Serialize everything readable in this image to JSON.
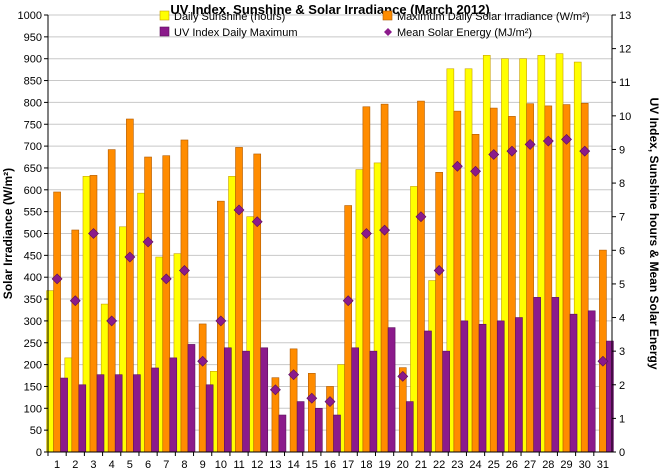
{
  "chart_data": {
    "type": "bar",
    "title": "UV Index, Sunshine & Solar Irradiance (March 2012)",
    "ylabel": "Solar Irradiance (W/m²)",
    "y2label": "UV Index, Sunshine hours & Mean Solar Energy",
    "xlabel": "",
    "ylim": [
      0,
      1000
    ],
    "y2lim": [
      0,
      13
    ],
    "yticks": [
      0,
      50,
      100,
      150,
      200,
      250,
      300,
      350,
      400,
      450,
      500,
      550,
      600,
      650,
      700,
      750,
      800,
      850,
      900,
      950,
      1000
    ],
    "y2ticks": [
      0,
      1,
      2,
      3,
      4,
      5,
      6,
      7,
      8,
      9,
      10,
      11,
      12,
      13
    ],
    "grid": true,
    "legend_position": "top",
    "categories": [
      "1",
      "2",
      "3",
      "4",
      "5",
      "6",
      "7",
      "8",
      "9",
      "10",
      "11",
      "12",
      "13",
      "14",
      "15",
      "16",
      "17",
      "18",
      "19",
      "20",
      "21",
      "22",
      "23",
      "24",
      "25",
      "26",
      "27",
      "28",
      "29",
      "30",
      "31"
    ],
    "series": [
      {
        "name": "Daily Sunshine (hours)",
        "kind": "bar",
        "axis": "right",
        "color": "#FFFF00",
        "stroke": "#C8A000",
        "values": [
          4.8,
          2.8,
          8.2,
          4.4,
          6.7,
          7.7,
          5.8,
          5.9,
          0,
          2.4,
          8.2,
          7.0,
          0,
          0,
          0,
          0,
          2.6,
          8.4,
          8.6,
          0,
          7.9,
          5.1,
          11.4,
          11.4,
          11.8,
          11.7,
          11.7,
          11.8,
          11.85,
          11.6,
          0
        ]
      },
      {
        "name": "Maximum Daily Solar Irradiance (W/m²)",
        "kind": "bar",
        "axis": "left",
        "color": "#FF8C00",
        "stroke": "#B05A00",
        "values": [
          595,
          508,
          633,
          692,
          762,
          675,
          678,
          714,
          293,
          574,
          697,
          682,
          170,
          236,
          180,
          150,
          564,
          790,
          796,
          193,
          803,
          640,
          780,
          727,
          787,
          768,
          797,
          792,
          795,
          798,
          462
        ]
      },
      {
        "name": "UV Index Daily Maximum",
        "kind": "bar",
        "axis": "right",
        "color": "#8B1A8B",
        "stroke": "#5A0F5A",
        "values": [
          2.2,
          2.0,
          2.3,
          2.3,
          2.3,
          2.5,
          2.8,
          3.2,
          2.0,
          3.1,
          3.0,
          3.1,
          1.1,
          1.5,
          1.3,
          1.1,
          3.1,
          3.0,
          3.7,
          1.5,
          3.6,
          3.0,
          3.9,
          3.8,
          3.9,
          4.0,
          4.6,
          4.6,
          4.1,
          4.2,
          3.3
        ]
      },
      {
        "name": "Mean Solar Energy (MJ/m²)",
        "kind": "scatter",
        "axis": "right",
        "color": "#8B1A8B",
        "values": [
          5.15,
          4.5,
          6.5,
          3.9,
          5.8,
          6.25,
          5.15,
          5.4,
          2.7,
          3.9,
          7.2,
          6.85,
          1.85,
          2.3,
          1.6,
          1.5,
          4.5,
          6.5,
          6.6,
          2.25,
          7.0,
          5.4,
          8.5,
          8.35,
          8.85,
          8.95,
          9.15,
          9.25,
          9.3,
          8.95,
          2.7
        ]
      }
    ]
  }
}
